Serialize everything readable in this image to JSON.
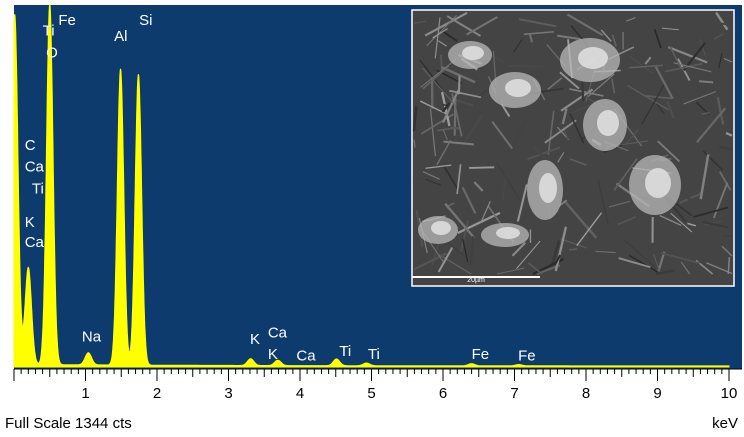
{
  "chart_data": {
    "type": "line",
    "xlabel": "keV",
    "footer": "Full Scale 1344 cts",
    "xlim": [
      0,
      10
    ],
    "ylim": [
      0,
      1344
    ],
    "x_ticks": [
      "1",
      "2",
      "3",
      "4",
      "5",
      "6",
      "7",
      "8",
      "9",
      "10"
    ],
    "background_color": "#0d3b6e",
    "spectrum_color": "#ffff00",
    "peaks": [
      {
        "kev": 0.01,
        "counts": 1300
      },
      {
        "kev": 0.2,
        "counts": 360
      },
      {
        "kev": 0.5,
        "counts": 1340
      },
      {
        "kev": 1.04,
        "counts": 45
      },
      {
        "kev": 1.49,
        "counts": 1100
      },
      {
        "kev": 1.74,
        "counts": 1080
      },
      {
        "kev": 3.31,
        "counts": 25
      },
      {
        "kev": 3.69,
        "counts": 20
      },
      {
        "kev": 4.51,
        "counts": 25
      },
      {
        "kev": 4.93,
        "counts": 10
      },
      {
        "kev": 6.4,
        "counts": 8
      },
      {
        "kev": 7.06,
        "counts": 5
      }
    ],
    "annotations": [
      {
        "text": "Fe",
        "kev": 0.62,
        "counts": 1350
      },
      {
        "text": "Fe",
        "kev": 0.62,
        "counts": 1270
      },
      {
        "text": "Ti",
        "kev": 0.4,
        "counts": 1230
      },
      {
        "text": "O",
        "kev": 0.45,
        "counts": 1150
      },
      {
        "text": "Al",
        "kev": 1.4,
        "counts": 1210
      },
      {
        "text": "Si",
        "kev": 1.75,
        "counts": 1270
      },
      {
        "text": "C",
        "kev": 0.15,
        "counts": 805
      },
      {
        "text": "Ca",
        "kev": 0.15,
        "counts": 725
      },
      {
        "text": "Ti",
        "kev": 0.25,
        "counts": 645
      },
      {
        "text": "K",
        "kev": 0.15,
        "counts": 520
      },
      {
        "text": "Ca",
        "kev": 0.15,
        "counts": 445
      },
      {
        "text": "Na",
        "kev": 0.95,
        "counts": 95
      },
      {
        "text": "K",
        "kev": 3.3,
        "counts": 85
      },
      {
        "text": "Ca",
        "kev": 3.55,
        "counts": 110
      },
      {
        "text": "K",
        "kev": 3.55,
        "counts": 30
      },
      {
        "text": "Ca",
        "kev": 3.95,
        "counts": 25
      },
      {
        "text": "Ti",
        "kev": 4.55,
        "counts": 40
      },
      {
        "text": "Ti",
        "kev": 4.95,
        "counts": 30
      },
      {
        "text": "Fe",
        "kev": 6.4,
        "counts": 30
      },
      {
        "text": "Fe",
        "kev": 7.05,
        "counts": 25
      }
    ],
    "inset": {
      "description_hidden": true,
      "scale_bar_text": "20µm"
    }
  }
}
